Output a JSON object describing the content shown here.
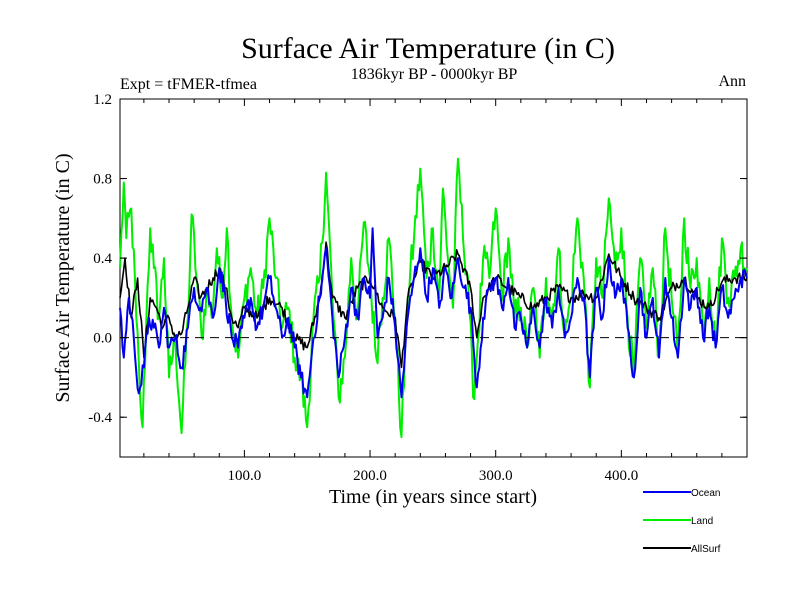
{
  "chart_data": {
    "type": "line",
    "title": "Surface Air Temperature (in C)",
    "subtitle_left": "Expt = tFMER-tfmea",
    "subtitle_center": "1836kyr BP - 0000kyr BP",
    "subtitle_right": "Ann",
    "xlabel": "Time (in years since start)",
    "ylabel": "Surface Air Temperature (in C)",
    "xlim": [
      1,
      500
    ],
    "ylim": [
      -0.6,
      1.2
    ],
    "xticks": [
      100,
      200,
      300,
      400
    ],
    "xtick_labels": [
      "100.0",
      "200.0",
      "300.0",
      "400.0"
    ],
    "yticks": [
      -0.4,
      0.0,
      0.4,
      0.8,
      1.2
    ],
    "ytick_labels": [
      "-0.4",
      "0.0",
      "0.4",
      "0.8",
      "1.2"
    ],
    "zero_line": true,
    "grid": false,
    "legend_position": "bottom-right",
    "series": [
      {
        "name": "Land",
        "color": "#00ee00",
        "keypoints": [
          [
            1,
            0.35
          ],
          [
            4,
            0.78
          ],
          [
            6,
            0.5
          ],
          [
            10,
            0.65
          ],
          [
            14,
            0.1
          ],
          [
            17,
            -0.3
          ],
          [
            19,
            -0.45
          ],
          [
            22,
            0.1
          ],
          [
            25,
            0.55
          ],
          [
            28,
            0.35
          ],
          [
            32,
            0.1
          ],
          [
            36,
            0.4
          ],
          [
            40,
            -0.2
          ],
          [
            45,
            0.0
          ],
          [
            50,
            -0.48
          ],
          [
            55,
            0.1
          ],
          [
            58,
            0.62
          ],
          [
            62,
            0.3
          ],
          [
            66,
            0.0
          ],
          [
            70,
            0.25
          ],
          [
            74,
            0.1
          ],
          [
            78,
            0.45
          ],
          [
            82,
            0.2
          ],
          [
            86,
            0.55
          ],
          [
            90,
            0.1
          ],
          [
            95,
            -0.1
          ],
          [
            100,
            0.2
          ],
          [
            105,
            0.35
          ],
          [
            110,
            0.1
          ],
          [
            115,
            0.25
          ],
          [
            120,
            0.6
          ],
          [
            125,
            0.3
          ],
          [
            130,
            0.05
          ],
          [
            135,
            0.15
          ],
          [
            140,
            -0.1
          ],
          [
            145,
            -0.2
          ],
          [
            150,
            -0.45
          ],
          [
            155,
            0.1
          ],
          [
            160,
            0.3
          ],
          [
            165,
            0.83
          ],
          [
            170,
            0.2
          ],
          [
            175,
            -0.3
          ],
          [
            180,
            -0.1
          ],
          [
            185,
            0.4
          ],
          [
            190,
            0.1
          ],
          [
            195,
            0.58
          ],
          [
            200,
            0.3
          ],
          [
            205,
            -0.1
          ],
          [
            210,
            0.2
          ],
          [
            215,
            0.5
          ],
          [
            220,
            0.1
          ],
          [
            225,
            -0.5
          ],
          [
            230,
            0.2
          ],
          [
            235,
            0.5
          ],
          [
            240,
            0.85
          ],
          [
            245,
            0.3
          ],
          [
            250,
            0.55
          ],
          [
            255,
            0.2
          ],
          [
            258,
            0.75
          ],
          [
            262,
            0.4
          ],
          [
            266,
            0.15
          ],
          [
            270,
            0.9
          ],
          [
            274,
            0.5
          ],
          [
            278,
            0.3
          ],
          [
            282,
            -0.3
          ],
          [
            286,
            0.0
          ],
          [
            290,
            0.4
          ],
          [
            295,
            0.3
          ],
          [
            300,
            0.65
          ],
          [
            305,
            0.2
          ],
          [
            310,
            0.5
          ],
          [
            315,
            0.1
          ],
          [
            320,
            0.15
          ],
          [
            325,
            -0.05
          ],
          [
            330,
            0.25
          ],
          [
            335,
            -0.1
          ],
          [
            340,
            0.3
          ],
          [
            345,
            0.1
          ],
          [
            350,
            0.45
          ],
          [
            355,
            0.0
          ],
          [
            360,
            0.2
          ],
          [
            365,
            0.6
          ],
          [
            370,
            0.3
          ],
          [
            375,
            -0.25
          ],
          [
            380,
            0.4
          ],
          [
            385,
            0.2
          ],
          [
            390,
            0.7
          ],
          [
            395,
            0.35
          ],
          [
            400,
            0.55
          ],
          [
            405,
            0.1
          ],
          [
            410,
            -0.2
          ],
          [
            415,
            0.4
          ],
          [
            420,
            0.05
          ],
          [
            425,
            0.35
          ],
          [
            430,
            -0.1
          ],
          [
            435,
            0.55
          ],
          [
            440,
            0.2
          ],
          [
            445,
            -0.1
          ],
          [
            450,
            0.6
          ],
          [
            455,
            0.25
          ],
          [
            460,
            0.4
          ],
          [
            465,
            0.05
          ],
          [
            470,
            0.3
          ],
          [
            475,
            -0.05
          ],
          [
            480,
            0.5
          ],
          [
            485,
            0.2
          ],
          [
            490,
            0.3
          ],
          [
            495,
            0.45
          ],
          [
            500,
            0.35
          ]
        ]
      },
      {
        "name": "AllSurf",
        "color": "#000000",
        "keypoints": [
          [
            1,
            0.2
          ],
          [
            5,
            0.4
          ],
          [
            10,
            0.1
          ],
          [
            15,
            0.3
          ],
          [
            20,
            -0.1
          ],
          [
            25,
            0.2
          ],
          [
            30,
            0.15
          ],
          [
            35,
            0.05
          ],
          [
            40,
            0.1
          ],
          [
            45,
            0.0
          ],
          [
            50,
            0.02
          ],
          [
            55,
            0.15
          ],
          [
            60,
            0.3
          ],
          [
            65,
            0.2
          ],
          [
            70,
            0.25
          ],
          [
            75,
            0.3
          ],
          [
            80,
            0.35
          ],
          [
            85,
            0.25
          ],
          [
            90,
            0.1
          ],
          [
            95,
            0.05
          ],
          [
            100,
            0.15
          ],
          [
            110,
            0.1
          ],
          [
            120,
            0.2
          ],
          [
            130,
            0.15
          ],
          [
            140,
            0.0
          ],
          [
            150,
            -0.05
          ],
          [
            160,
            0.2
          ],
          [
            165,
            0.48
          ],
          [
            170,
            0.2
          ],
          [
            180,
            0.1
          ],
          [
            190,
            0.25
          ],
          [
            200,
            0.3
          ],
          [
            210,
            0.15
          ],
          [
            220,
            0.1
          ],
          [
            225,
            -0.15
          ],
          [
            230,
            0.2
          ],
          [
            240,
            0.38
          ],
          [
            250,
            0.3
          ],
          [
            260,
            0.35
          ],
          [
            270,
            0.42
          ],
          [
            280,
            0.25
          ],
          [
            285,
            0.0
          ],
          [
            290,
            0.2
          ],
          [
            300,
            0.3
          ],
          [
            310,
            0.25
          ],
          [
            320,
            0.2
          ],
          [
            330,
            0.15
          ],
          [
            340,
            0.2
          ],
          [
            350,
            0.25
          ],
          [
            360,
            0.2
          ],
          [
            370,
            0.22
          ],
          [
            380,
            0.2
          ],
          [
            390,
            0.42
          ],
          [
            400,
            0.3
          ],
          [
            410,
            0.2
          ],
          [
            420,
            0.15
          ],
          [
            430,
            0.1
          ],
          [
            440,
            0.25
          ],
          [
            450,
            0.3
          ],
          [
            460,
            0.2
          ],
          [
            470,
            0.15
          ],
          [
            480,
            0.28
          ],
          [
            490,
            0.3
          ],
          [
            500,
            0.3
          ]
        ]
      },
      {
        "name": "Ocean",
        "color": "#0000ee",
        "keypoints": [
          [
            1,
            0.15
          ],
          [
            4,
            -0.1
          ],
          [
            8,
            0.2
          ],
          [
            12,
            0.0
          ],
          [
            16,
            -0.28
          ],
          [
            20,
            -0.15
          ],
          [
            24,
            0.1
          ],
          [
            28,
            0.05
          ],
          [
            32,
            -0.05
          ],
          [
            36,
            0.15
          ],
          [
            40,
            -0.05
          ],
          [
            45,
            0.0
          ],
          [
            50,
            -0.15
          ],
          [
            55,
            0.05
          ],
          [
            60,
            0.25
          ],
          [
            65,
            0.15
          ],
          [
            70,
            0.25
          ],
          [
            75,
            0.1
          ],
          [
            80,
            0.35
          ],
          [
            85,
            0.2
          ],
          [
            90,
            0.0
          ],
          [
            95,
            -0.05
          ],
          [
            100,
            0.1
          ],
          [
            105,
            0.2
          ],
          [
            110,
            0.05
          ],
          [
            115,
            0.15
          ],
          [
            120,
            0.3
          ],
          [
            125,
            0.15
          ],
          [
            130,
            0.0
          ],
          [
            135,
            0.1
          ],
          [
            140,
            -0.05
          ],
          [
            145,
            -0.2
          ],
          [
            150,
            -0.3
          ],
          [
            155,
            0.0
          ],
          [
            160,
            0.2
          ],
          [
            165,
            0.45
          ],
          [
            170,
            0.1
          ],
          [
            175,
            -0.2
          ],
          [
            180,
            0.0
          ],
          [
            185,
            0.25
          ],
          [
            190,
            0.1
          ],
          [
            195,
            0.3
          ],
          [
            200,
            0.2
          ],
          [
            202,
            0.55
          ],
          [
            206,
            0.0
          ],
          [
            210,
            0.1
          ],
          [
            215,
            0.3
          ],
          [
            220,
            0.05
          ],
          [
            225,
            -0.3
          ],
          [
            230,
            0.1
          ],
          [
            235,
            0.3
          ],
          [
            240,
            0.45
          ],
          [
            245,
            0.2
          ],
          [
            250,
            0.35
          ],
          [
            255,
            0.15
          ],
          [
            260,
            0.35
          ],
          [
            265,
            0.2
          ],
          [
            270,
            0.4
          ],
          [
            275,
            0.25
          ],
          [
            280,
            0.15
          ],
          [
            285,
            -0.25
          ],
          [
            290,
            0.1
          ],
          [
            295,
            0.25
          ],
          [
            300,
            0.3
          ],
          [
            305,
            0.15
          ],
          [
            310,
            0.3
          ],
          [
            315,
            0.05
          ],
          [
            320,
            0.1
          ],
          [
            325,
            -0.05
          ],
          [
            330,
            0.15
          ],
          [
            335,
            -0.05
          ],
          [
            340,
            0.2
          ],
          [
            345,
            0.05
          ],
          [
            350,
            0.25
          ],
          [
            355,
            0.0
          ],
          [
            360,
            0.1
          ],
          [
            365,
            0.3
          ],
          [
            370,
            0.2
          ],
          [
            375,
            -0.2
          ],
          [
            380,
            0.25
          ],
          [
            385,
            0.1
          ],
          [
            390,
            0.4
          ],
          [
            395,
            0.2
          ],
          [
            400,
            0.3
          ],
          [
            405,
            0.05
          ],
          [
            410,
            -0.2
          ],
          [
            415,
            0.25
          ],
          [
            420,
            0.0
          ],
          [
            425,
            0.2
          ],
          [
            430,
            -0.1
          ],
          [
            435,
            0.3
          ],
          [
            440,
            0.1
          ],
          [
            445,
            -0.1
          ],
          [
            450,
            0.3
          ],
          [
            455,
            0.15
          ],
          [
            460,
            0.25
          ],
          [
            465,
            0.0
          ],
          [
            470,
            0.15
          ],
          [
            475,
            -0.05
          ],
          [
            480,
            0.25
          ],
          [
            485,
            0.1
          ],
          [
            490,
            0.2
          ],
          [
            495,
            0.3
          ],
          [
            500,
            0.3
          ]
        ]
      }
    ]
  },
  "legend": {
    "items": [
      {
        "label": "Ocean",
        "color": "#0000ee"
      },
      {
        "label": "Land",
        "color": "#00ee00"
      },
      {
        "label": "AllSurf",
        "color": "#000000"
      }
    ]
  }
}
